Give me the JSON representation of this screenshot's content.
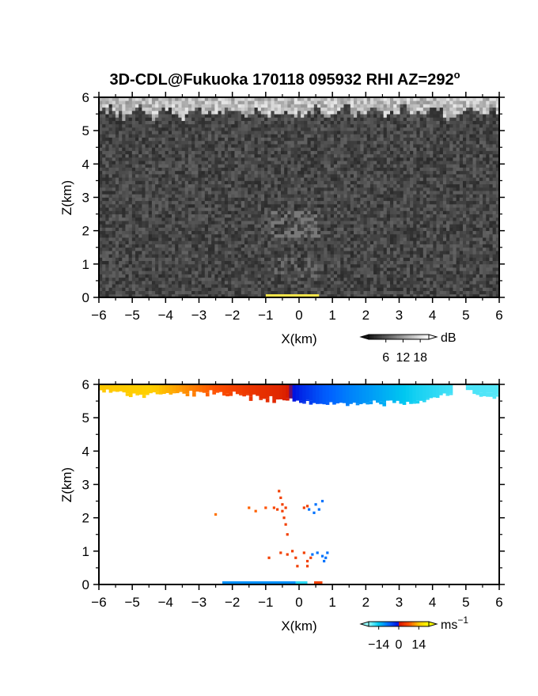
{
  "chart_data": [
    {
      "type": "heatmap",
      "title": "3D-CDL@Fukuoka 170118 095932 RHI AZ=292",
      "title_superscript": "o",
      "xlabel": "X(km)",
      "ylabel": "Z(km)",
      "xlim": [
        -6,
        6
      ],
      "ylim": [
        0,
        6
      ],
      "xticks": [
        "-6",
        "-5",
        "-4",
        "-3",
        "-2",
        "-1",
        "0",
        "1",
        "2",
        "3",
        "4",
        "5",
        "6"
      ],
      "yticks": [
        "0",
        "1",
        "2",
        "3",
        "4",
        "5",
        "6"
      ],
      "colorbar": {
        "unit": "dB",
        "ticks": [
          "6",
          "12",
          "18"
        ],
        "range": [
          0,
          21
        ],
        "colormap": "grayscale"
      },
      "features": [
        {
          "name": "strong-return-band-top",
          "z": [
            5.6,
            6.0
          ],
          "value_db": 16
        },
        {
          "name": "faint-structure",
          "x": [
            -0.8,
            0.6
          ],
          "z": [
            1.8,
            2.6
          ],
          "value_db": 9
        },
        {
          "name": "faint-structure",
          "x": [
            -0.7,
            0.5
          ],
          "z": [
            0.6,
            1.2
          ],
          "value_db": 8
        },
        {
          "name": "near-ground-return",
          "x": [
            -1.0,
            0.6
          ],
          "z": [
            0.0,
            0.05
          ],
          "value_db": 21
        }
      ]
    },
    {
      "type": "heatmap",
      "xlabel": "X(km)",
      "ylabel": "Z(km)",
      "xlim": [
        -6,
        6
      ],
      "ylim": [
        0,
        6
      ],
      "xticks": [
        "-6",
        "-5",
        "-4",
        "-3",
        "-2",
        "-1",
        "0",
        "1",
        "2",
        "3",
        "4",
        "5",
        "6"
      ],
      "yticks": [
        "0",
        "1",
        "2",
        "3",
        "4",
        "5",
        "6"
      ],
      "colorbar": {
        "unit": "ms",
        "unit_superscript": "-1",
        "ticks": [
          "−14",
          "0",
          "14"
        ],
        "range": [
          -21,
          21
        ],
        "colormap": "velocity"
      },
      "velocity_top_band": [
        {
          "x": -5.8,
          "v": 14
        },
        {
          "x": -4.5,
          "v": 15
        },
        {
          "x": -3.5,
          "v": 11
        },
        {
          "x": -2.5,
          "v": 7
        },
        {
          "x": -1.5,
          "v": 4
        },
        {
          "x": -0.5,
          "v": 2
        },
        {
          "x": 0.0,
          "v": -2
        },
        {
          "x": 0.7,
          "v": -6
        },
        {
          "x": 1.5,
          "v": -9
        },
        {
          "x": 2.5,
          "v": -12
        },
        {
          "x": 3.5,
          "v": -15
        },
        {
          "x": 4.5,
          "v": -17
        },
        {
          "x": 5.9,
          "v": -18
        }
      ],
      "band_bottom_z": [
        {
          "x": -5.9,
          "z": 5.85
        },
        {
          "x": -5.0,
          "z": 5.7
        },
        {
          "x": -4.0,
          "z": 5.75
        },
        {
          "x": -3.0,
          "z": 5.8
        },
        {
          "x": -2.0,
          "z": 5.75
        },
        {
          "x": -1.0,
          "z": 5.6
        },
        {
          "x": -0.2,
          "z": 5.55
        },
        {
          "x": 0.5,
          "z": 5.45
        },
        {
          "x": 1.0,
          "z": 5.45
        },
        {
          "x": 1.5,
          "z": 5.4
        },
        {
          "x": 2.5,
          "z": 5.5
        },
        {
          "x": 3.5,
          "z": 5.45
        },
        {
          "x": 4.0,
          "z": 5.6
        },
        {
          "x": 4.8,
          "z": 5.85
        },
        {
          "x": 5.5,
          "z": 5.7
        }
      ],
      "points": [
        {
          "x": -2.5,
          "z": 2.1,
          "v": 9
        },
        {
          "x": -1.5,
          "z": 2.3,
          "v": 8
        },
        {
          "x": -1.3,
          "z": 2.2,
          "v": 8
        },
        {
          "x": -1.0,
          "z": 2.3,
          "v": 7
        },
        {
          "x": -0.75,
          "z": 2.3,
          "v": 6
        },
        {
          "x": -0.65,
          "z": 2.25,
          "v": 5
        },
        {
          "x": -0.6,
          "z": 2.8,
          "v": 5
        },
        {
          "x": -0.55,
          "z": 2.6,
          "v": 5
        },
        {
          "x": -0.5,
          "z": 2.4,
          "v": 5
        },
        {
          "x": -0.5,
          "z": 2.2,
          "v": 5
        },
        {
          "x": -0.45,
          "z": 2.0,
          "v": 5
        },
        {
          "x": -0.4,
          "z": 1.8,
          "v": 5
        },
        {
          "x": -0.35,
          "z": 1.5,
          "v": 5
        },
        {
          "x": -0.4,
          "z": 2.3,
          "v": 5
        },
        {
          "x": 0.15,
          "z": 2.3,
          "v": 5
        },
        {
          "x": 0.25,
          "z": 2.35,
          "v": 5
        },
        {
          "x": 0.3,
          "z": 2.25,
          "v": -8
        },
        {
          "x": 0.45,
          "z": 2.15,
          "v": -8
        },
        {
          "x": 0.6,
          "z": 2.25,
          "v": -8
        },
        {
          "x": 0.7,
          "z": 2.5,
          "v": -8
        },
        {
          "x": 0.5,
          "z": 2.4,
          "v": -8
        },
        {
          "x": -0.9,
          "z": 0.8,
          "v": 5
        },
        {
          "x": -0.55,
          "z": 0.95,
          "v": 5
        },
        {
          "x": -0.35,
          "z": 0.9,
          "v": 5
        },
        {
          "x": -0.2,
          "z": 1.0,
          "v": 5
        },
        {
          "x": -0.1,
          "z": 0.8,
          "v": 5
        },
        {
          "x": -0.05,
          "z": 0.55,
          "v": 5
        },
        {
          "x": 0.15,
          "z": 0.95,
          "v": 5
        },
        {
          "x": 0.25,
          "z": 0.7,
          "v": 5
        },
        {
          "x": 0.35,
          "z": 0.8,
          "v": 5
        },
        {
          "x": 0.25,
          "z": 0.55,
          "v": 5
        },
        {
          "x": 0.55,
          "z": 0.95,
          "v": -8
        },
        {
          "x": 0.7,
          "z": 0.85,
          "v": -8
        },
        {
          "x": 0.85,
          "z": 0.95,
          "v": -8
        },
        {
          "x": 0.8,
          "z": 0.8,
          "v": -8
        },
        {
          "x": 0.75,
          "z": 0.7,
          "v": -8
        },
        {
          "x": 0.4,
          "z": 0.9,
          "v": -8
        }
      ],
      "ground_segments": [
        {
          "x0": -2.3,
          "x1": -0.1,
          "v": -10
        },
        {
          "x0": -0.1,
          "x1": 0.25,
          "v": -16
        },
        {
          "x0": 0.45,
          "x1": 0.7,
          "v": 5
        }
      ]
    }
  ]
}
